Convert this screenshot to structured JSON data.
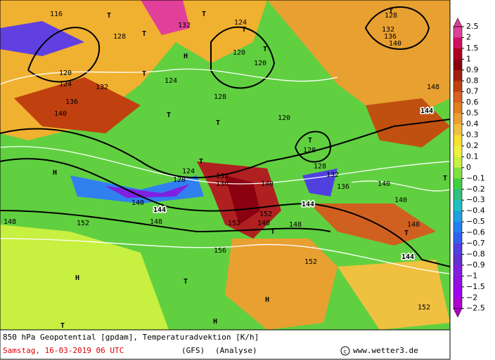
{
  "map": {
    "labels": [
      "116",
      "128",
      "132",
      "124",
      "128",
      "132",
      "136",
      "140",
      "120",
      "124",
      "132",
      "136",
      "140",
      "128",
      "120",
      "120",
      "124",
      "120",
      "120",
      "128",
      "132",
      "136",
      "124",
      "128",
      "132",
      "136",
      "140",
      "140",
      "144",
      "148",
      "152",
      "148",
      "152",
      "152",
      "144",
      "148",
      "140",
      "140",
      "140",
      "144",
      "144",
      "148",
      "152",
      "156",
      "152",
      "148",
      "H",
      "H",
      "H",
      "H",
      "H",
      "T",
      "T",
      "T",
      "T",
      "T",
      "T",
      "T",
      "T",
      "T",
      "T",
      "T",
      "T",
      "T",
      "T",
      "T",
      "T"
    ],
    "colorbar": {
      "labels": [
        "2.5",
        "2",
        "1.5",
        "1",
        "0.9",
        "0.8",
        "0.7",
        "0.6",
        "0.5",
        "0.4",
        "0.3",
        "0.2",
        "0.1",
        "0",
        "−0.1",
        "−0.2",
        "−0.3",
        "−0.4",
        "−0.5",
        "−0.6",
        "−0.7",
        "−0.8",
        "−0.9",
        "−1",
        "−1.5",
        "−2",
        "−2.5"
      ],
      "colors": [
        "#e0409a",
        "#d01060",
        "#b00020",
        "#8a0010",
        "#a02010",
        "#c04010",
        "#d86020",
        "#e08020",
        "#e8a030",
        "#f0c040",
        "#f8e030",
        "#f0f040",
        "#c8f040",
        "#80e040",
        "#40d040",
        "#30c080",
        "#20c0c0",
        "#20a0e0",
        "#2080f0",
        "#3060f0",
        "#5040e0",
        "#6030d0",
        "#8020e0",
        "#9010e0",
        "#a000f0",
        "#b000d0"
      ]
    },
    "caption": {
      "title": "850 hPa Geopotential [gpdam], Temperaturadvektion [K/h]",
      "date": "Samstag, 16-03-2019  06 UTC",
      "model": "(GFS)",
      "run": "(Analyse)",
      "site": "www.wetter3.de"
    }
  }
}
